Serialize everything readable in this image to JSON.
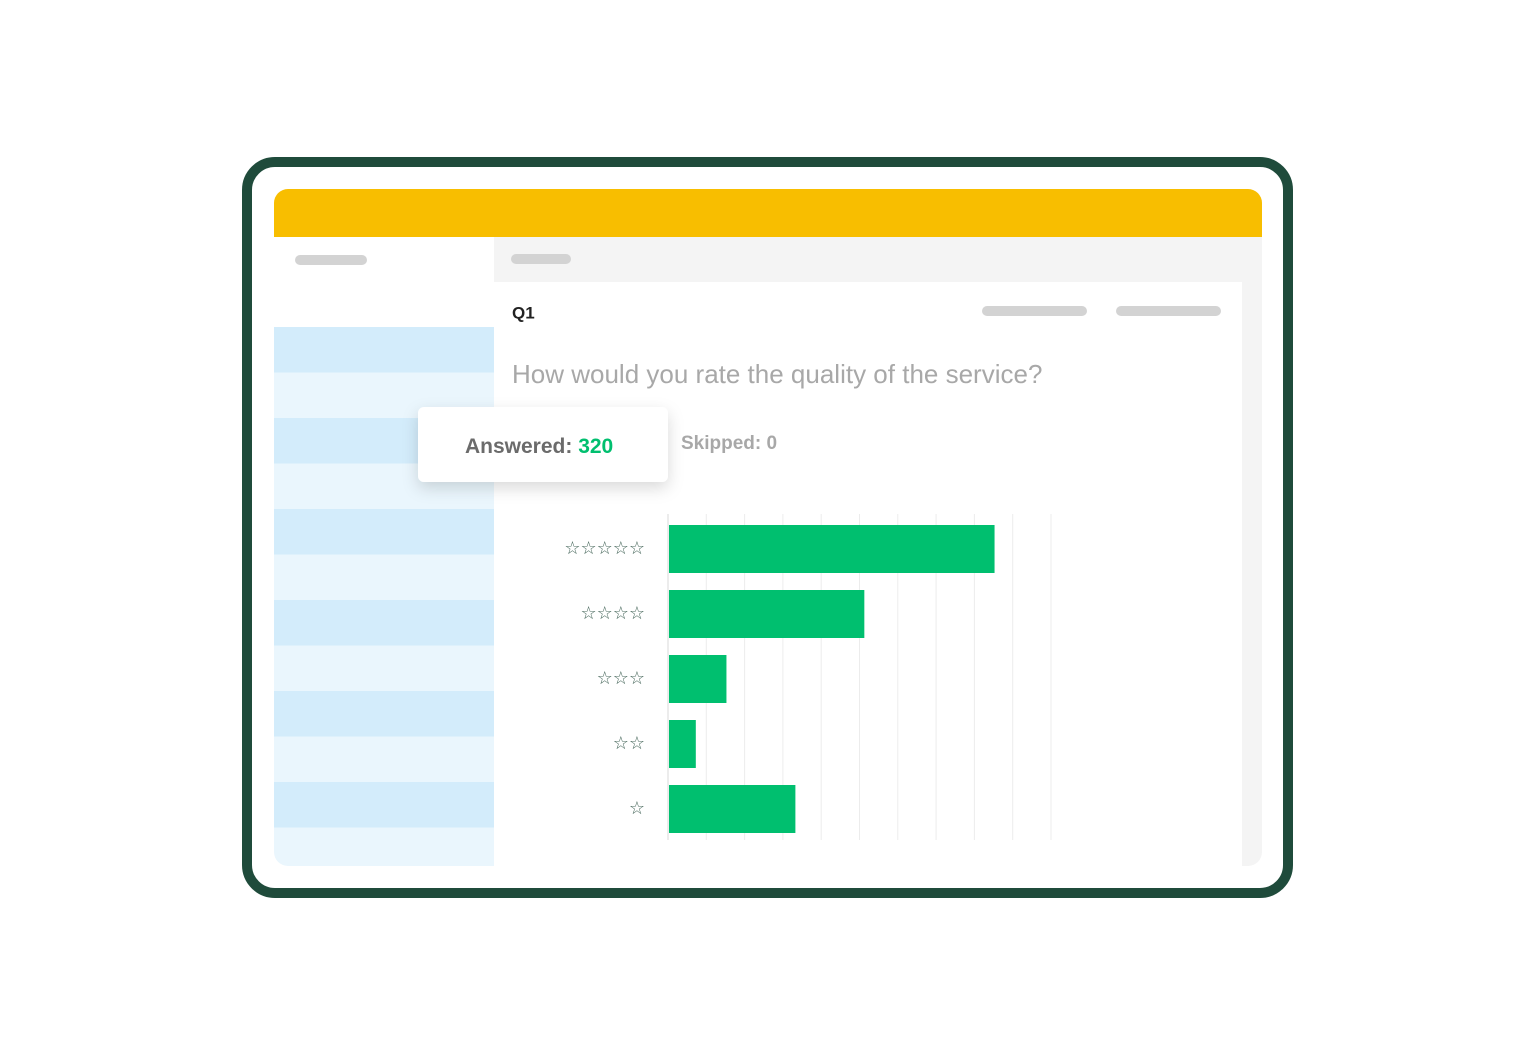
{
  "question": {
    "number": "Q1",
    "text": "How would you rate the quality of the service?"
  },
  "summary": {
    "answered_label": "Answered:",
    "answered_value": 320,
    "skipped_label": "Skipped:",
    "skipped_value": 0
  },
  "chart_data": {
    "type": "bar",
    "orientation": "horizontal",
    "categories": [
      "☆☆☆☆☆",
      "☆☆☆☆",
      "☆☆☆",
      "☆☆",
      "☆"
    ],
    "values": [
      8.5,
      5.1,
      1.5,
      0.7,
      3.3
    ],
    "color": "#00bf6f",
    "xlim": [
      0,
      10
    ],
    "xticks": [
      0,
      1,
      2,
      3,
      4,
      5,
      6,
      7,
      8,
      9,
      10
    ],
    "grid": true
  }
}
